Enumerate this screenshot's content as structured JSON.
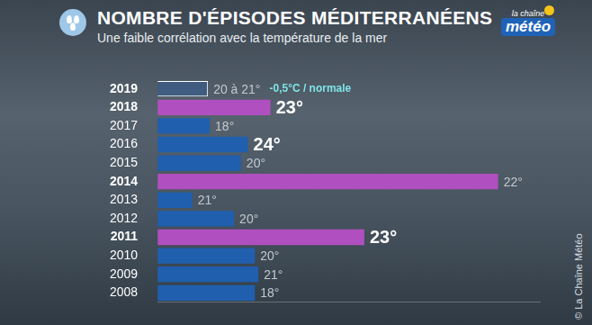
{
  "chart_data": {
    "type": "bar",
    "orientation": "horizontal",
    "title": "NOMBRE D'ÉPISODES MÉDITERRANÉENS",
    "subtitle": "Une faible corrélation avec la température de la mer",
    "logo": [
      "la chaîne",
      "météo"
    ],
    "source": "© La Chaîne Météo",
    "categories": [
      "2019",
      "2018",
      "2017",
      "2016",
      "2015",
      "2014",
      "2013",
      "2012",
      "2011",
      "2010",
      "2009",
      "2008"
    ],
    "values": [
      2.9,
      6.5,
      3,
      5.2,
      4.8,
      19.6,
      2,
      4.4,
      11.9,
      5.6,
      5.8,
      5.6
    ],
    "sea_temperature_labels": [
      "20 à 21°",
      "23°",
      "18°",
      "24°",
      "20°",
      "22°",
      "21°",
      "20°",
      "23°",
      "20°",
      "21°",
      "18°"
    ],
    "annotation": "-0,5°C / normale",
    "color": "#1f5fae",
    "colors": [
      "rgba(31,95,174,0.35)",
      "#b04fbf",
      "#1f5fae",
      "#1f5fae",
      "#1f5fae",
      "#b04fbf",
      "#1f5fae",
      "#1f5fae",
      "#b04fbf",
      "#1f5fae",
      "#1f5fae",
      "#1f5fae"
    ],
    "xlim": [
      0,
      22
    ],
    "xticks": [],
    "tick_labels": "y",
    "grid": false
  }
}
